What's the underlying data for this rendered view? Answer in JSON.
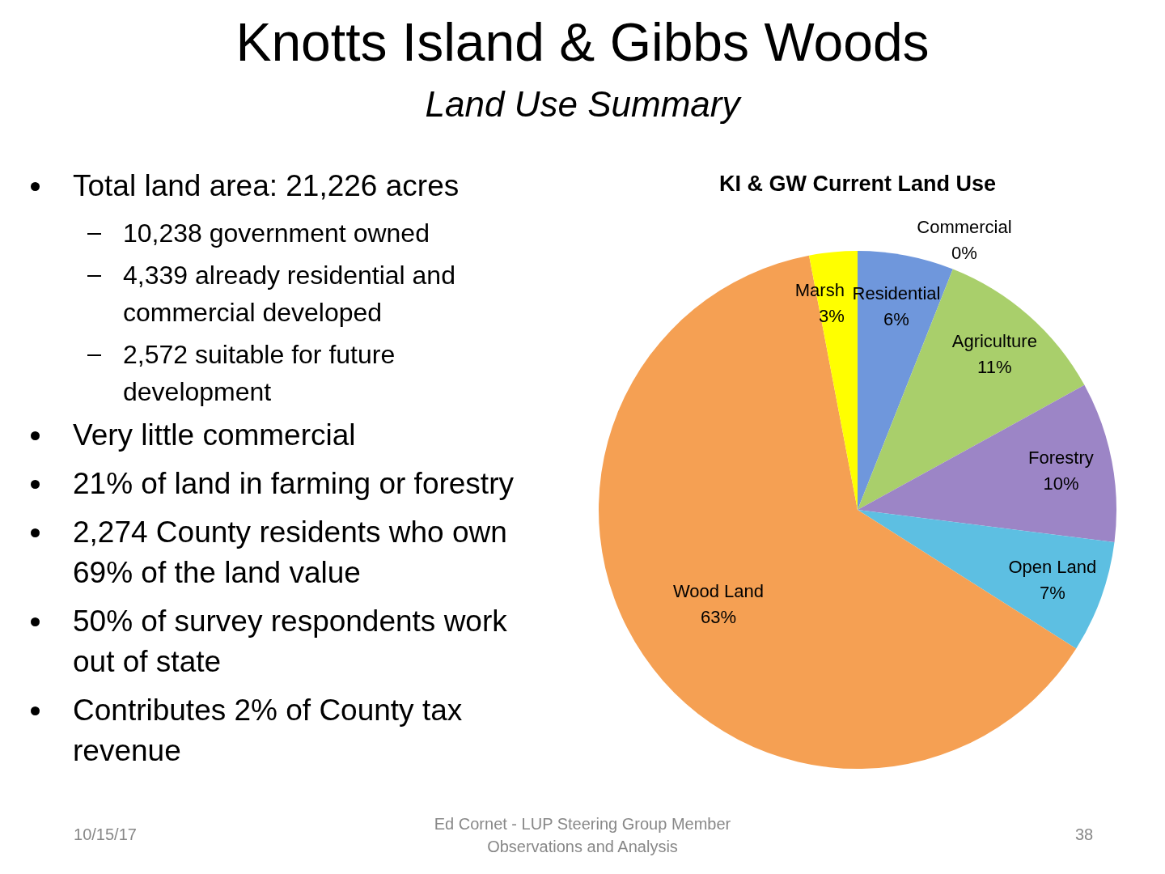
{
  "chart_data": {
    "type": "pie",
    "title": "Knotts Island & Gibbs Woods",
    "subtitle": "Land Use Summary",
    "categories": [
      "Residential",
      "Commercial",
      "Agriculture",
      "Forestry",
      "Open Land",
      "Wood Land",
      "Marsh"
    ],
    "values": [
      6,
      0,
      11,
      10,
      7,
      63,
      3
    ],
    "value_labels": [
      "6%",
      "0%",
      "11%",
      "10%",
      "7%",
      "63%",
      "3%"
    ],
    "colors": [
      "#6f97dc",
      "#e39a9a",
      "#a9cf6b",
      "#9c85c6",
      "#5dbfe2",
      "#f5a053",
      "#ffff00"
    ],
    "legend": false,
    "annotations": [
      "KI & GW Current Land Use",
      "Total land area: 21,226 acres",
      "10,238 government owned",
      "4,339 already residential and commercial developed",
      "2,572 suitable for future development",
      "Very little commercial",
      "21% of land in farming or forestry",
      "2,274 County residents who own 69% of the land value",
      "50% of survey respondents work out of state",
      "Contributes 2% of County tax revenue",
      "10/15/17",
      "Ed Cornet - LUP Steering Group Member\nObservations and Analysis",
      "38"
    ]
  }
}
